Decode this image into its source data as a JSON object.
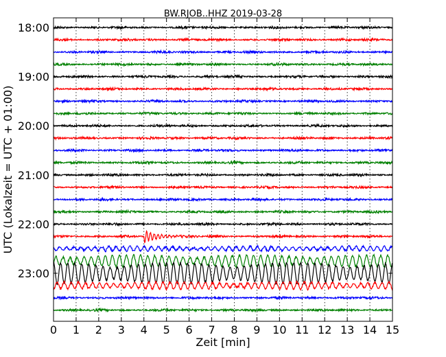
{
  "chart_data": {
    "type": "line",
    "title": "BW.RJOB..HHZ 2019-03-28",
    "xlabel": "Zeit  [min]",
    "ylabel": "UTC (Lokalzeit = UTC + 01:00)",
    "xlim": [
      0,
      15
    ],
    "x_ticks": [
      "0",
      "1",
      "2",
      "3",
      "4",
      "5",
      "6",
      "7",
      "8",
      "9",
      "10",
      "11",
      "12",
      "13",
      "14",
      "15"
    ],
    "y_ticks": [
      "18:00",
      "19:00",
      "20:00",
      "21:00",
      "22:00",
      "23:00"
    ],
    "grid": "vertical dotted",
    "trace_colors": [
      "#000000",
      "#ff0000",
      "#0000ff",
      "#008000"
    ],
    "traces": [
      {
        "start": "18:00",
        "color": "#000000",
        "amplitude": 1
      },
      {
        "start": "18:15",
        "color": "#ff0000",
        "amplitude": 1
      },
      {
        "start": "18:30",
        "color": "#0000ff",
        "amplitude": 1
      },
      {
        "start": "18:45",
        "color": "#008000",
        "amplitude": 1
      },
      {
        "start": "19:00",
        "color": "#000000",
        "amplitude": 1
      },
      {
        "start": "19:15",
        "color": "#ff0000",
        "amplitude": 1
      },
      {
        "start": "19:30",
        "color": "#0000ff",
        "amplitude": 1
      },
      {
        "start": "19:45",
        "color": "#008000",
        "amplitude": 1
      },
      {
        "start": "20:00",
        "color": "#000000",
        "amplitude": 1
      },
      {
        "start": "20:15",
        "color": "#ff0000",
        "amplitude": 1
      },
      {
        "start": "20:30",
        "color": "#0000ff",
        "amplitude": 1
      },
      {
        "start": "20:45",
        "color": "#008000",
        "amplitude": 1
      },
      {
        "start": "21:00",
        "color": "#000000",
        "amplitude": 1
      },
      {
        "start": "21:15",
        "color": "#ff0000",
        "amplitude": 1
      },
      {
        "start": "21:30",
        "color": "#0000ff",
        "amplitude": 1
      },
      {
        "start": "21:45",
        "color": "#008000",
        "amplitude": 1
      },
      {
        "start": "22:00",
        "color": "#000000",
        "amplitude": 1
      },
      {
        "start": "22:15",
        "color": "#ff0000",
        "amplitude": 1,
        "event_at_min": 4.0
      },
      {
        "start": "22:30",
        "color": "#0000ff",
        "amplitude": 2
      },
      {
        "start": "22:45",
        "color": "#008000",
        "amplitude": 5
      },
      {
        "start": "23:00",
        "color": "#000000",
        "amplitude": 9
      },
      {
        "start": "23:15",
        "color": "#ff0000",
        "amplitude": 3
      },
      {
        "start": "23:30",
        "color": "#0000ff",
        "amplitude": 1
      },
      {
        "start": "23:45",
        "color": "#008000",
        "amplitude": 1
      }
    ]
  }
}
